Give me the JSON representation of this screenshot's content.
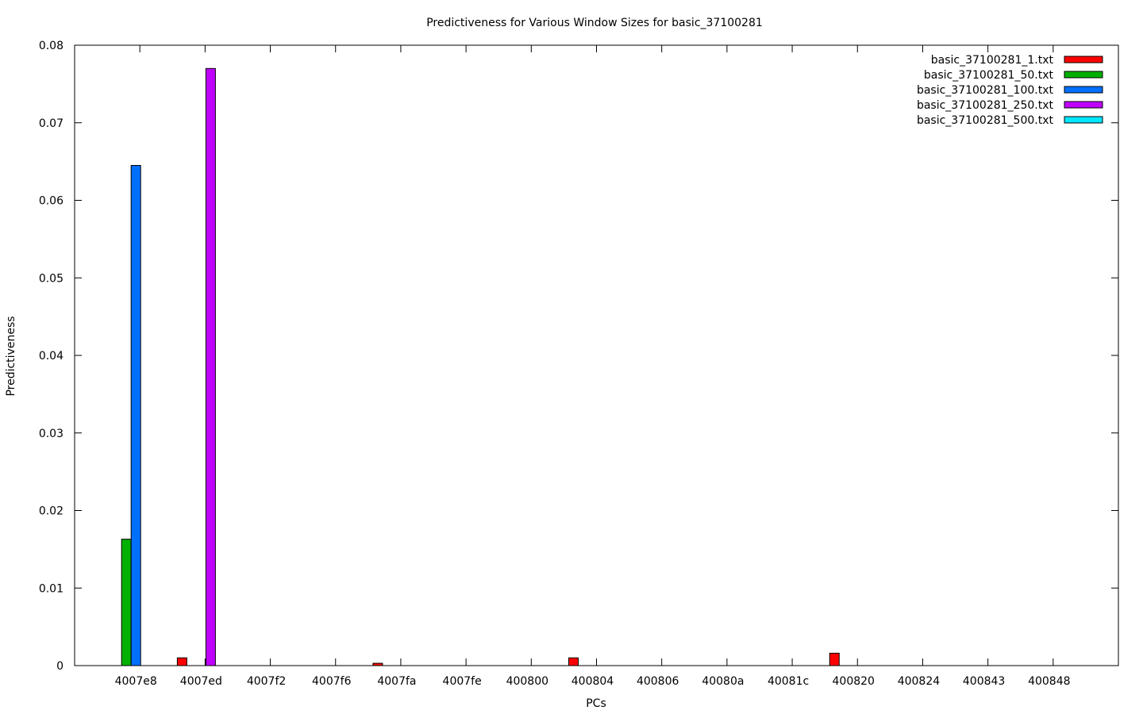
{
  "chart_data": {
    "type": "bar",
    "title": "Predictiveness for Various Window Sizes for basic_37100281",
    "xlabel": "PCs",
    "ylabel": "Predictiveness",
    "ylim": [
      0,
      0.08
    ],
    "yticks": [
      "0",
      "0.01",
      "0.02",
      "0.03",
      "0.04",
      "0.05",
      "0.06",
      "0.07",
      "0.08"
    ],
    "grid": false,
    "legend_position": "top-right",
    "categories": [
      "4007e8",
      "4007ed",
      "4007f2",
      "4007f6",
      "4007fa",
      "4007fe",
      "400800",
      "400804",
      "400806",
      "40080a",
      "40081c",
      "400820",
      "400824",
      "400843",
      "400848"
    ],
    "series": [
      {
        "name": "basic_37100281_1.txt",
        "color": "#ff0000",
        "values": [
          0,
          0.001,
          0,
          0,
          0.0003,
          0,
          0,
          0.001,
          0,
          0,
          0,
          0.0016,
          0,
          0,
          0
        ]
      },
      {
        "name": "basic_37100281_50.txt",
        "color": "#00b000",
        "values": [
          0.0163,
          0,
          0,
          0,
          0,
          0,
          0,
          0,
          0,
          0,
          0,
          0,
          0,
          0,
          0
        ]
      },
      {
        "name": "basic_37100281_100.txt",
        "color": "#0070ff",
        "values": [
          0.0645,
          0,
          0,
          0,
          0,
          0,
          0,
          0,
          0,
          0,
          0,
          0,
          0,
          0,
          0
        ]
      },
      {
        "name": "basic_37100281_250.txt",
        "color": "#c000ff",
        "values": [
          0,
          0.077,
          0,
          0,
          0,
          0,
          0,
          0,
          0,
          0,
          0,
          0,
          0,
          0,
          0
        ]
      },
      {
        "name": "basic_37100281_500.txt",
        "color": "#00e8ff",
        "values": [
          0,
          0,
          0,
          0,
          0,
          0,
          0,
          0,
          0,
          0,
          0,
          0,
          0,
          0,
          0
        ]
      }
    ]
  }
}
